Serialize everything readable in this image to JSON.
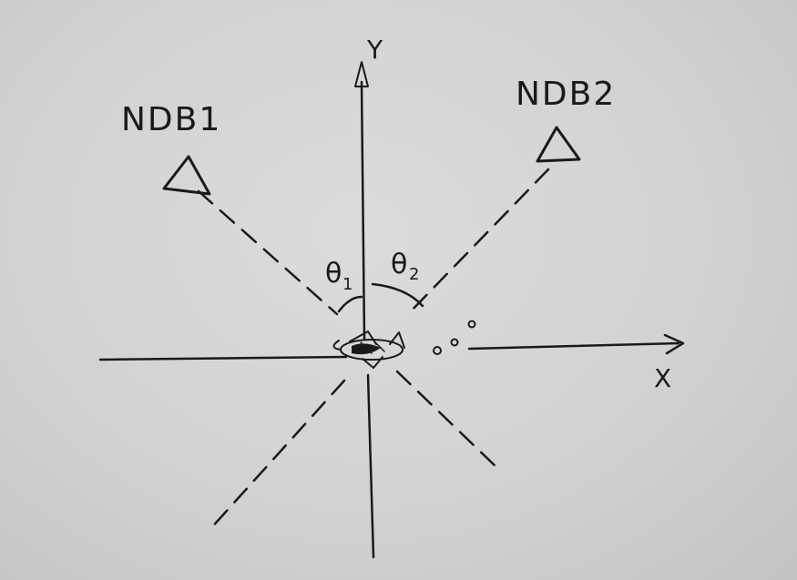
{
  "labels": {
    "x_axis": "X",
    "y_axis": "Y",
    "ndb1": "NDB1",
    "ndb2": "NDB2",
    "theta1": "θ",
    "theta1_sub": "1",
    "theta2": "θ",
    "theta2_sub": "2"
  },
  "colors": {
    "paper": "#d6d6d4",
    "ink": "#1a1a1a"
  },
  "icons": {
    "ndb1": "triangle-icon",
    "ndb2": "triangle-icon",
    "aircraft": "airplane-icon"
  }
}
